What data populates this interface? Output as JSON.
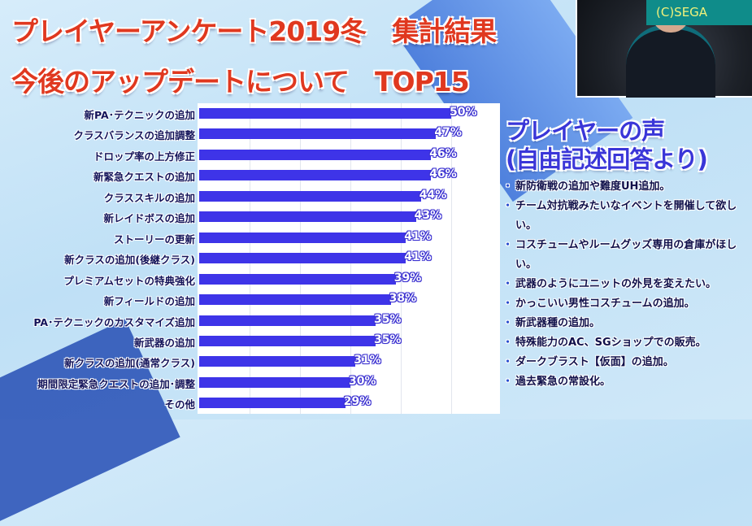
{
  "header": {
    "title_line1": "プレイヤーアンケート2019冬　集計結果",
    "title_line2": "今後のアップデートについて　TOP15"
  },
  "webcam": {
    "copyright": "(C)SEGA"
  },
  "chart_data": {
    "type": "bar",
    "orientation": "horizontal",
    "title": "",
    "categories": [
      "新PA･テクニックの追加",
      "クラスバランスの追加調整",
      "ドロップ率の上方修正",
      "新緊急クエストの追加",
      "クラススキルの追加",
      "新レイドボスの追加",
      "ストーリーの更新",
      "新クラスの追加(後継クラス)",
      "プレミアムセットの特典強化",
      "新フィールドの追加",
      "PA･テクニックのカスタマイズ追加",
      "新武器の追加",
      "新クラスの追加(通常クラス)",
      "期間限定緊急クエストの追加･調整",
      "その他"
    ],
    "values": [
      50,
      47,
      46,
      46,
      44,
      43,
      41,
      41,
      39,
      38,
      35,
      35,
      31,
      30,
      29
    ],
    "labels": [
      "50%",
      "47%",
      "46%",
      "46%",
      "44%",
      "43%",
      "41%",
      "41%",
      "39%",
      "38%",
      "35%",
      "35%",
      "31%",
      "30%",
      "29%"
    ],
    "xlim": [
      0,
      60
    ],
    "grid": true,
    "bar_color": "#3e34e8"
  },
  "voices": {
    "heading_line1": "プレイヤーの声",
    "heading_line2": "(自由記述回答より)",
    "items": [
      "新防衛戦の追加や難度UH追加。",
      "チーム対抗戦みたいなイベントを開催して欲しい。",
      "コスチュームやルームグッズ専用の倉庫がほしい。",
      "武器のようにユニットの外見を変えたい。",
      "かっこいい男性コスチュームの追加。",
      "新武器種の追加。",
      "特殊能力のAC、SGショップでの販売。",
      "ダークブラスト【仮面】の追加。",
      "過去緊急の常設化。"
    ]
  }
}
